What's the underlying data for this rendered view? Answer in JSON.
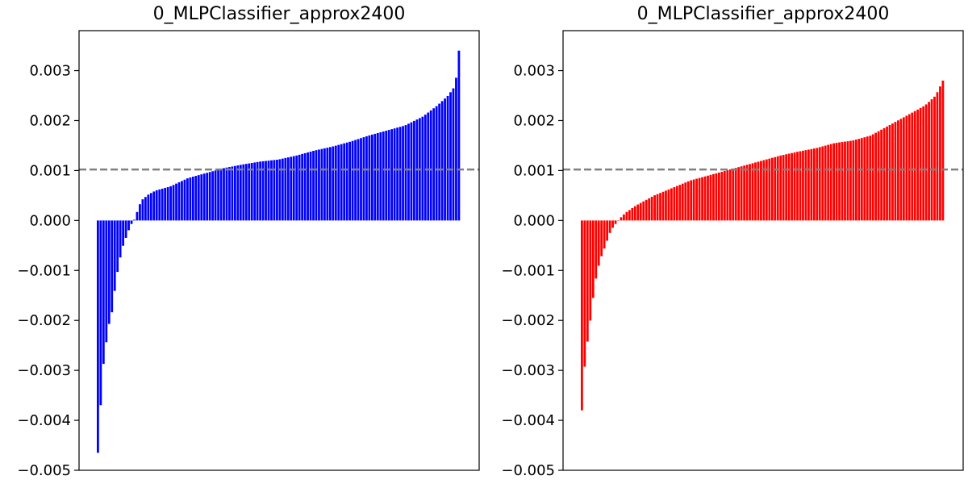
{
  "chart_data": [
    {
      "type": "bar",
      "title": "0_MLPClassifier_approx2400",
      "color": "#0000ff",
      "ylim": [
        -0.005,
        0.0038
      ],
      "yticks": [
        -0.005,
        -0.004,
        -0.003,
        -0.002,
        -0.001,
        0.0,
        0.001,
        0.002,
        0.003
      ],
      "ytick_labels": [
        "−0.005",
        "−0.004",
        "−0.003",
        "−0.002",
        "−0.001",
        "0.000",
        "0.001",
        "0.002",
        "0.003"
      ],
      "hline": {
        "y": 0.00102,
        "style": "dashed",
        "color": "#808080"
      },
      "x_ticks_visible": false,
      "curve_anchors": [
        [
          0.0,
          -0.00465
        ],
        [
          0.003,
          -0.0039
        ],
        [
          0.01,
          -0.0036
        ],
        [
          0.015,
          -0.0029
        ],
        [
          0.02,
          -0.0026
        ],
        [
          0.03,
          -0.0021
        ],
        [
          0.04,
          -0.0018
        ],
        [
          0.05,
          -0.0012
        ],
        [
          0.06,
          -0.0008
        ],
        [
          0.07,
          -0.0005
        ],
        [
          0.08,
          -0.0003
        ],
        [
          0.09,
          -0.0001
        ],
        [
          0.1,
          0.0
        ],
        [
          0.11,
          0.0002
        ],
        [
          0.12,
          0.0004
        ],
        [
          0.14,
          0.00052
        ],
        [
          0.16,
          0.0006
        ],
        [
          0.2,
          0.00068
        ],
        [
          0.25,
          0.00085
        ],
        [
          0.3,
          0.00095
        ],
        [
          0.35,
          0.00105
        ],
        [
          0.4,
          0.00112
        ],
        [
          0.45,
          0.00118
        ],
        [
          0.5,
          0.00122
        ],
        [
          0.55,
          0.0013
        ],
        [
          0.6,
          0.0014
        ],
        [
          0.65,
          0.00148
        ],
        [
          0.7,
          0.00158
        ],
        [
          0.75,
          0.0017
        ],
        [
          0.8,
          0.0018
        ],
        [
          0.85,
          0.0019
        ],
        [
          0.9,
          0.00208
        ],
        [
          0.94,
          0.0023
        ],
        [
          0.97,
          0.0025
        ],
        [
          0.99,
          0.0027
        ],
        [
          1.0,
          0.0034
        ]
      ]
    },
    {
      "type": "bar",
      "title": "0_MLPClassifier_approx2400",
      "color": "#ff0000",
      "ylim": [
        -0.005,
        0.0038
      ],
      "yticks": [
        -0.005,
        -0.004,
        -0.003,
        -0.002,
        -0.001,
        0.0,
        0.001,
        0.002,
        0.003
      ],
      "ytick_labels": [
        "−0.005",
        "−0.004",
        "−0.003",
        "−0.002",
        "−0.001",
        "0.000",
        "0.001",
        "0.002",
        "0.003"
      ],
      "hline": {
        "y": 0.00102,
        "style": "dashed",
        "color": "#808080"
      },
      "x_ticks_visible": false,
      "curve_anchors": [
        [
          0.0,
          -0.0038
        ],
        [
          0.005,
          -0.0032
        ],
        [
          0.01,
          -0.0027
        ],
        [
          0.02,
          -0.0022
        ],
        [
          0.03,
          -0.0016
        ],
        [
          0.04,
          -0.0011
        ],
        [
          0.05,
          -0.0008
        ],
        [
          0.06,
          -0.0006
        ],
        [
          0.07,
          -0.0004
        ],
        [
          0.08,
          -0.0002
        ],
        [
          0.09,
          -0.0001
        ],
        [
          0.1,
          0.0
        ],
        [
          0.12,
          0.00015
        ],
        [
          0.15,
          0.0003
        ],
        [
          0.2,
          0.0005
        ],
        [
          0.25,
          0.00065
        ],
        [
          0.3,
          0.0008
        ],
        [
          0.35,
          0.0009
        ],
        [
          0.4,
          0.001
        ],
        [
          0.45,
          0.0011
        ],
        [
          0.5,
          0.0012
        ],
        [
          0.55,
          0.0013
        ],
        [
          0.6,
          0.00138
        ],
        [
          0.65,
          0.00145
        ],
        [
          0.7,
          0.00155
        ],
        [
          0.75,
          0.0016
        ],
        [
          0.8,
          0.0017
        ],
        [
          0.85,
          0.0019
        ],
        [
          0.9,
          0.0021
        ],
        [
          0.95,
          0.0023
        ],
        [
          0.98,
          0.0025
        ],
        [
          1.0,
          0.0028
        ]
      ]
    }
  ]
}
